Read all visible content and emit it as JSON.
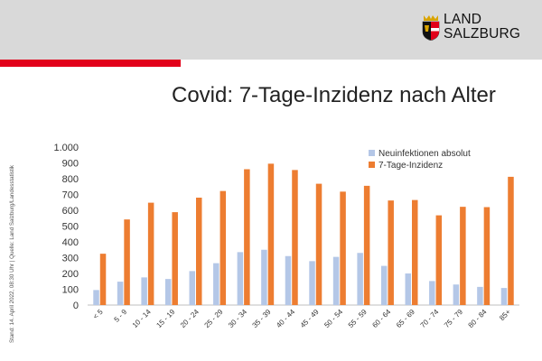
{
  "logo": {
    "line1": "LAND",
    "line2": "SALZBURG"
  },
  "title": "Covid: 7-Tage-Inzidenz nach Alter",
  "side_note": "Stand: 14. April 2022, 08:30 Uhr | Quelle: Land Salzburg/Landesstatistik",
  "colors": {
    "header": "#d9d9d9",
    "red": "#e2001a",
    "series1": "#b4c7e7",
    "series2": "#ed7d31"
  },
  "chart_data": {
    "type": "bar",
    "title": "",
    "xlabel": "",
    "ylabel": "",
    "ylim": [
      0,
      1000
    ],
    "yticks": [
      {
        "value": 0,
        "label": "0"
      },
      {
        "value": 100,
        "label": "100"
      },
      {
        "value": 200,
        "label": "200"
      },
      {
        "value": 300,
        "label": "300"
      },
      {
        "value": 400,
        "label": "400"
      },
      {
        "value": 500,
        "label": "500"
      },
      {
        "value": 600,
        "label": "600"
      },
      {
        "value": 700,
        "label": "700"
      },
      {
        "value": 800,
        "label": "800"
      },
      {
        "value": 900,
        "label": "900"
      },
      {
        "value": 1000,
        "label": "1.000"
      }
    ],
    "grid": false,
    "legend": "top-right",
    "categories": [
      "< 5",
      "5 - 9",
      "10 - 14",
      "15 - 19",
      "20 - 24",
      "25 - 29",
      "30 - 34",
      "35 - 39",
      "40 - 44",
      "45 - 49",
      "50 - 54",
      "55 - 59",
      "60 - 64",
      "65 - 69",
      "70 - 74",
      "75 - 79",
      "80 - 84",
      "85+"
    ],
    "series": [
      {
        "name": "Neuinfektionen absolut",
        "color": "#b4c7e7",
        "values": [
          95,
          148,
          175,
          165,
          215,
          265,
          335,
          350,
          310,
          278,
          305,
          330,
          248,
          200,
          152,
          130,
          115,
          108
        ]
      },
      {
        "name": "7-Tage-Inzidenz",
        "color": "#ed7d31",
        "values": [
          325,
          542,
          648,
          588,
          680,
          722,
          860,
          895,
          855,
          768,
          718,
          755,
          662,
          665,
          568,
          622,
          620,
          812
        ]
      }
    ]
  }
}
